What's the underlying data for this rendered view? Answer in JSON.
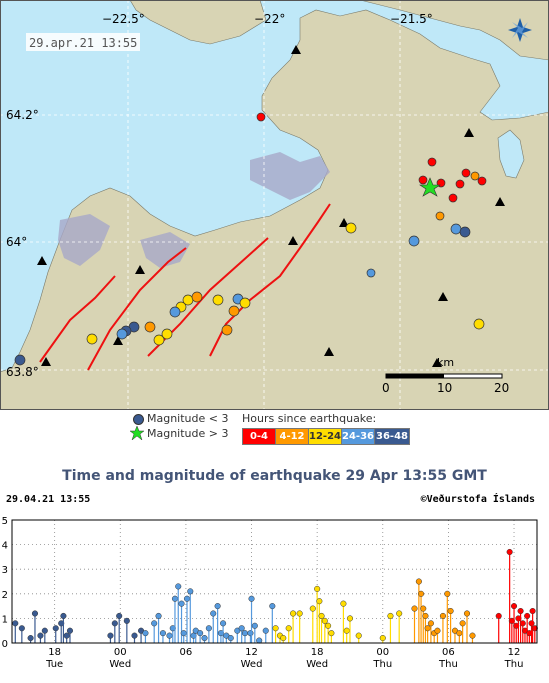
{
  "map": {
    "timestamp": "29.apr.21  13:55",
    "lon_labels": [
      "−22.5°",
      "−22°",
      "−21.5°"
    ],
    "lat_labels": [
      "64.2°",
      "64°",
      "63.8°"
    ],
    "scale": {
      "unit": "km",
      "ticks": [
        "0",
        "10",
        "20"
      ]
    },
    "logo": "vedurstofa-star-logo"
  },
  "legend": {
    "magnitude_lt3": "Magnitude < 3",
    "magnitude_gt3": "Magnitude > 3",
    "hours_title": "Hours since earthquake:",
    "hours": [
      {
        "label": "0-4",
        "color": "#ff0000"
      },
      {
        "label": "4-12",
        "color": "#ff9900"
      },
      {
        "label": "12-24",
        "color": "#ffdd00"
      },
      {
        "label": "24-36",
        "color": "#5599dd"
      },
      {
        "label": "36-48",
        "color": "#3a5a90"
      }
    ]
  },
  "chart_title": "Time and magnitude of earthquake   29 Apr 13:55 GMT",
  "chart_header_left": "29.04.21 13:55",
  "chart_header_right": "©Veðurstofa Íslands",
  "chart_data": {
    "type": "scatter",
    "title": "Time and magnitude of earthquake   29 Apr 13:55 GMT",
    "ylim": [
      0,
      5
    ],
    "yticks": [
      "0",
      "1",
      "2",
      "3",
      "4",
      "5"
    ],
    "xlim": [
      0,
      48
    ],
    "xticks": [
      {
        "t": 3.9,
        "hour": "18",
        "day": "Tue"
      },
      {
        "t": 9.9,
        "hour": "00",
        "day": "Wed"
      },
      {
        "t": 15.9,
        "hour": "06",
        "day": ""
      },
      {
        "t": 21.9,
        "hour": "12",
        "day": "Wed"
      },
      {
        "t": 27.9,
        "hour": "18",
        "day": "Wed"
      },
      {
        "t": 33.9,
        "hour": "00",
        "day": "Thu"
      },
      {
        "t": 39.9,
        "hour": "06",
        "day": "Thu"
      },
      {
        "t": 45.9,
        "hour": "12",
        "day": "Thu"
      }
    ],
    "points": [
      [
        0.3,
        0.8
      ],
      [
        0.9,
        0.6
      ],
      [
        1.7,
        0.2
      ],
      [
        2.1,
        1.2
      ],
      [
        2.6,
        0.3
      ],
      [
        3.0,
        0.5
      ],
      [
        4.0,
        0.6
      ],
      [
        4.5,
        0.8
      ],
      [
        4.7,
        1.1
      ],
      [
        5.0,
        0.3
      ],
      [
        5.3,
        0.5
      ],
      [
        9.0,
        0.3
      ],
      [
        9.4,
        0.8
      ],
      [
        9.8,
        1.1
      ],
      [
        10.5,
        0.9
      ],
      [
        11.2,
        0.3
      ],
      [
        11.8,
        0.5
      ],
      [
        12.2,
        0.4
      ],
      [
        13.0,
        0.8
      ],
      [
        13.4,
        1.1
      ],
      [
        13.8,
        0.4
      ],
      [
        14.4,
        0.3
      ],
      [
        14.7,
        0.6
      ],
      [
        14.9,
        1.8
      ],
      [
        15.2,
        2.3
      ],
      [
        15.5,
        1.6
      ],
      [
        15.7,
        0.4
      ],
      [
        16.0,
        1.8
      ],
      [
        16.3,
        2.1
      ],
      [
        16.6,
        0.3
      ],
      [
        16.8,
        0.5
      ],
      [
        17.2,
        0.4
      ],
      [
        17.6,
        0.2
      ],
      [
        18.0,
        0.6
      ],
      [
        18.4,
        1.2
      ],
      [
        18.8,
        1.5
      ],
      [
        19.1,
        0.4
      ],
      [
        19.3,
        0.8
      ],
      [
        19.6,
        0.3
      ],
      [
        20.0,
        0.2
      ],
      [
        20.6,
        0.5
      ],
      [
        21.0,
        0.6
      ],
      [
        21.3,
        0.4
      ],
      [
        21.8,
        0.4
      ],
      [
        21.9,
        1.8
      ],
      [
        22.2,
        0.7
      ],
      [
        22.6,
        0.1
      ],
      [
        23.2,
        0.5
      ],
      [
        23.8,
        1.5
      ],
      [
        24.1,
        0.6
      ],
      [
        24.5,
        0.3
      ],
      [
        24.8,
        0.2
      ],
      [
        25.3,
        0.6
      ],
      [
        25.7,
        1.2
      ],
      [
        26.3,
        1.2
      ],
      [
        27.5,
        1.4
      ],
      [
        27.9,
        2.2
      ],
      [
        28.1,
        1.7
      ],
      [
        28.3,
        1.1
      ],
      [
        28.6,
        0.9
      ],
      [
        28.9,
        0.7
      ],
      [
        29.2,
        0.4
      ],
      [
        30.3,
        1.6
      ],
      [
        30.6,
        0.5
      ],
      [
        30.9,
        1.0
      ],
      [
        31.7,
        0.3
      ],
      [
        33.9,
        0.2
      ],
      [
        34.6,
        1.1
      ],
      [
        35.4,
        1.2
      ],
      [
        36.8,
        1.4
      ],
      [
        37.2,
        2.5
      ],
      [
        37.4,
        2.0
      ],
      [
        37.6,
        1.4
      ],
      [
        37.8,
        1.1
      ],
      [
        38.0,
        0.6
      ],
      [
        38.3,
        0.8
      ],
      [
        38.6,
        0.4
      ],
      [
        38.9,
        0.5
      ],
      [
        39.4,
        1.1
      ],
      [
        39.8,
        2.0
      ],
      [
        40.1,
        1.3
      ],
      [
        40.5,
        0.5
      ],
      [
        40.9,
        0.4
      ],
      [
        41.2,
        0.8
      ],
      [
        41.6,
        1.2
      ],
      [
        42.1,
        0.3
      ],
      [
        44.5,
        1.1
      ],
      [
        45.5,
        3.7
      ],
      [
        45.7,
        0.9
      ],
      [
        45.9,
        1.5
      ],
      [
        46.1,
        0.7
      ],
      [
        46.3,
        1.0
      ],
      [
        46.5,
        1.3
      ],
      [
        46.7,
        0.8
      ],
      [
        46.9,
        0.5
      ],
      [
        47.1,
        1.1
      ],
      [
        47.3,
        0.4
      ],
      [
        47.5,
        0.8
      ],
      [
        47.6,
        1.3
      ],
      [
        47.8,
        0.6
      ]
    ],
    "series_colors": [
      {
        "from": 0,
        "to": 12,
        "color": "#3a5a90"
      },
      {
        "from": 12,
        "to": 24,
        "color": "#5599dd"
      },
      {
        "from": 24,
        "to": 36,
        "color": "#ffdd00"
      },
      {
        "from": 36,
        "to": 44,
        "color": "#ff9900"
      },
      {
        "from": 44,
        "to": 48,
        "color": "#ff0000"
      }
    ]
  }
}
